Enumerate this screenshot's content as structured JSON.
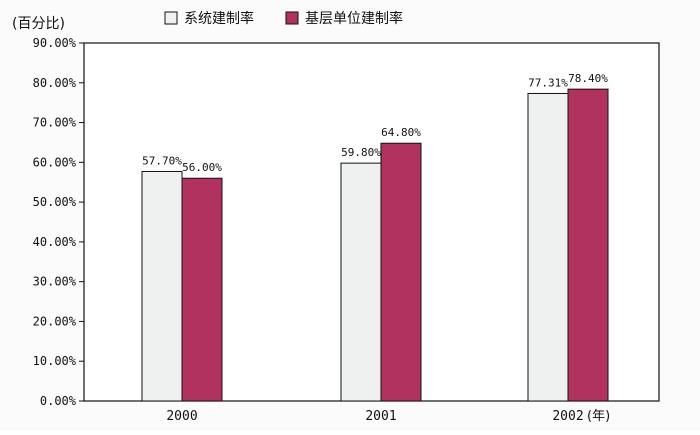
{
  "chart_data": {
    "type": "bar",
    "yunit": "(百分比)",
    "xunit": "(年)",
    "categories": [
      "2000",
      "2001",
      "2002"
    ],
    "series": [
      {
        "name": "系统建制率",
        "values": [
          57.7,
          59.8,
          77.31
        ],
        "labels": [
          "57.70%",
          "59.80%",
          "77.31%"
        ],
        "color": "#eef1ef"
      },
      {
        "name": "基层单位建制率",
        "values": [
          56.0,
          64.8,
          78.4
        ],
        "labels": [
          "56.00%",
          "64.80%",
          "78.40%"
        ],
        "color": "#b2325f"
      }
    ],
    "yticks": [
      "0.00%",
      "10.00%",
      "20.00%",
      "30.00%",
      "40.00%",
      "50.00%",
      "60.00%",
      "70.00%",
      "80.00%",
      "90.00%"
    ],
    "ylim": [
      0,
      90
    ],
    "grid": false,
    "legend_position": "top-center"
  }
}
